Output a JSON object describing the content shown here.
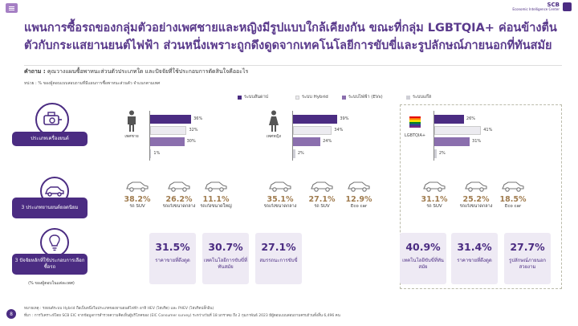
{
  "header": {
    "menu_icon": "hamburger-icon",
    "logo_name": "SCB",
    "logo_sub": "Economic Intelligence Center"
  },
  "title": "แพนการซื้อรถของกลุ่มตัวอย่างเพศชายและหญิงมีรูปแบบใกล้เคียงกัน ขณะที่กลุ่ม LGBTQIA+ ค่อนข้างตื่นตัวกับกระแสยานยนต์ไฟฟ้า ส่วนหนึ่งเพราะถูกดึงดูดจากเทคโนโลยีการขับขี่และรูปลักษณ์ภายนอกที่ทันสมัย",
  "question_prefix": "คำถาม :",
  "question": "คุณวางแผนซื้อพาหนะส่วนตัวประเภทใด และปัจจัยที่ใช้ประกอบการตัดสินใจคืออะไร",
  "unit": "หน่วย : % ของผู้ตอบแบบสอบถามที่มีแผนการซื้อพาหนะส่วนตัว จำแนกตามเพศ",
  "legend": [
    {
      "label": "ระบบสันดาป",
      "color": "#4b2c82"
    },
    {
      "label": "ระบบ Hybrid",
      "color": "#ecebf0"
    },
    {
      "label": "ระบบไฟฟ้า (EVs)",
      "color": "#8b6fae"
    },
    {
      "label": "ระบบแก๊ส",
      "color": "#cfcfd6"
    }
  ],
  "row_labels": {
    "engine": "ประเภทเครื่องยนต์",
    "popular": "3 ประเภทยานยนต์ยอดนิยม",
    "factors": "3 ปัจจัยหลักที่ใช้ประกอบการเลือกซื้อรถ",
    "factors_note": "(% ของผู้ตอบในแต่ละเพศ)"
  },
  "groups": [
    {
      "name": "เพศชาย",
      "values": [
        "36%",
        "32%",
        "30%",
        "1%"
      ],
      "cars": [
        {
          "pct": "38.2%",
          "name": "รถ SUV"
        },
        {
          "pct": "26.2%",
          "name": "รถเก๋งขนาดกลาง"
        },
        {
          "pct": "11.1%",
          "name": "รถเก๋งขนาดใหญ่"
        }
      ],
      "factors": [
        {
          "pct": "31.5%",
          "name": "ราคาขายที่ดึงดูด"
        },
        {
          "pct": "30.7%",
          "name": "เทคโนโลยีการขับขี่ที่ทันสมัย"
        },
        {
          "pct": "27.1%",
          "name": "สมรรถนะการขับขี่"
        }
      ]
    },
    {
      "name": "เพศหญิง",
      "values": [
        "39%",
        "34%",
        "24%",
        "2%"
      ],
      "cars": [
        {
          "pct": "35.1%",
          "name": "รถเก๋งขนาดกลาง"
        },
        {
          "pct": "27.1%",
          "name": "รถ SUV"
        },
        {
          "pct": "12.9%",
          "name": "Eco car"
        }
      ]
    },
    {
      "name": "LGBTQIA+",
      "values": [
        "26%",
        "41%",
        "31%",
        "2%"
      ],
      "cars": [
        {
          "pct": "31.1%",
          "name": "รถ SUV"
        },
        {
          "pct": "25.2%",
          "name": "รถเก๋งขนาดกลาง"
        },
        {
          "pct": "18.5%",
          "name": "Eco car"
        }
      ],
      "factors": [
        {
          "pct": "40.9%",
          "name": "เทคโนโลยีขับขี่ที่ทันสมัย"
        },
        {
          "pct": "31.4%",
          "name": "ราคาขายที่ดึงดูด"
        },
        {
          "pct": "27.7%",
          "name": "รูปลักษณ์ภายนอกสวยงาม"
        }
      ]
    }
  ],
  "chart_data": [
    {
      "type": "bar",
      "categories": [
        "ระบบสันดาป",
        "ระบบ Hybrid",
        "ระบบไฟฟ้า (EVs)",
        "ระบบแก๊ส"
      ],
      "series": [
        {
          "name": "เพศชาย",
          "values": [
            36,
            32,
            30,
            1
          ]
        }
      ]
    },
    {
      "type": "bar",
      "categories": [
        "ระบบสันดาป",
        "ระบบ Hybrid",
        "ระบบไฟฟ้า (EVs)",
        "ระบบแก๊ส"
      ],
      "series": [
        {
          "name": "เพศหญิง",
          "values": [
            39,
            34,
            24,
            2
          ]
        }
      ]
    },
    {
      "type": "bar",
      "categories": [
        "ระบบสันดาป",
        "ระบบ Hybrid",
        "ระบบไฟฟ้า (EVs)",
        "ระบบแก๊ส"
      ],
      "series": [
        {
          "name": "LGBTQIA+",
          "values": [
            26,
            41,
            31,
            2
          ]
        }
      ]
    }
  ],
  "footnotes": [
    "หมายเหตุ : รถยนต์ระบบ Hybrid ถือเป็นหนึ่งในประเภทของยานยนต์ไฟฟ้า อาทิ HEV (ไฮบริด) และ PHEV (ไฮบริดปลั๊กอิน)",
    "ที่มา : การวิเคราะห์โดย SCB EIC จากข้อมูลการสำรวจความคิดเห็นผู้บริโภคของ (EIC Consumer survey) ระหว่างวันที่ 18 มกราคม ถึง 2 กุมภาพันธ์ 2023 มีผู้ตอบแบบสอบถามครบถ้วนทั้งสิ้น 6,496 คน"
  ],
  "page_number": "8"
}
